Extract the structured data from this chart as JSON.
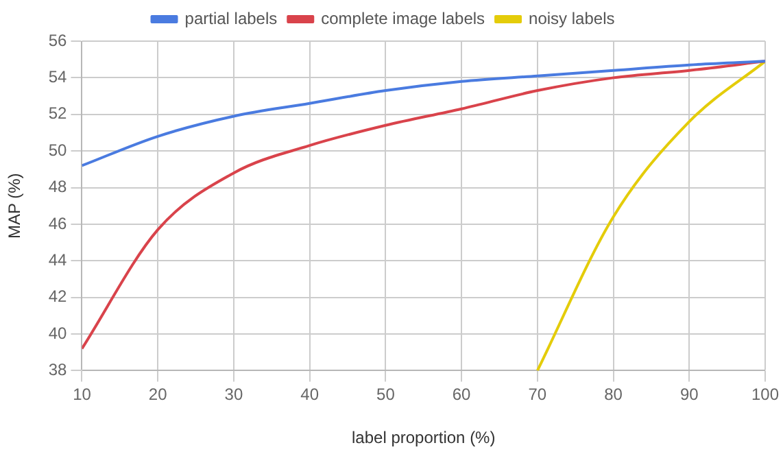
{
  "chart_data": {
    "type": "line",
    "xlabel": "label proportion (%)",
    "ylabel": "MAP (%)",
    "x": [
      10,
      20,
      30,
      40,
      50,
      60,
      70,
      80,
      90,
      100
    ],
    "xlim": [
      10,
      100
    ],
    "xticks": [
      10,
      20,
      30,
      40,
      50,
      60,
      70,
      80,
      90,
      100
    ],
    "ylim": [
      38,
      56
    ],
    "yticks": [
      38,
      40,
      42,
      44,
      46,
      48,
      50,
      52,
      54,
      56
    ],
    "grid": true,
    "legend": "top",
    "marker": "none",
    "line_style": "solid",
    "series": [
      {
        "name": "partial labels",
        "color": "#4a7be0",
        "values": [
          49.2,
          50.8,
          51.9,
          52.6,
          53.3,
          53.8,
          54.1,
          54.4,
          54.7,
          54.9
        ]
      },
      {
        "name": "complete image labels",
        "color": "#d9434b",
        "values": [
          39.2,
          45.7,
          48.8,
          50.3,
          51.4,
          52.3,
          53.3,
          54.0,
          54.4,
          54.9
        ]
      },
      {
        "name": "noisy labels",
        "color": "#e4cc0a",
        "x": [
          70,
          80,
          90,
          100
        ],
        "values": [
          38.0,
          46.4,
          51.6,
          54.9
        ]
      }
    ]
  }
}
